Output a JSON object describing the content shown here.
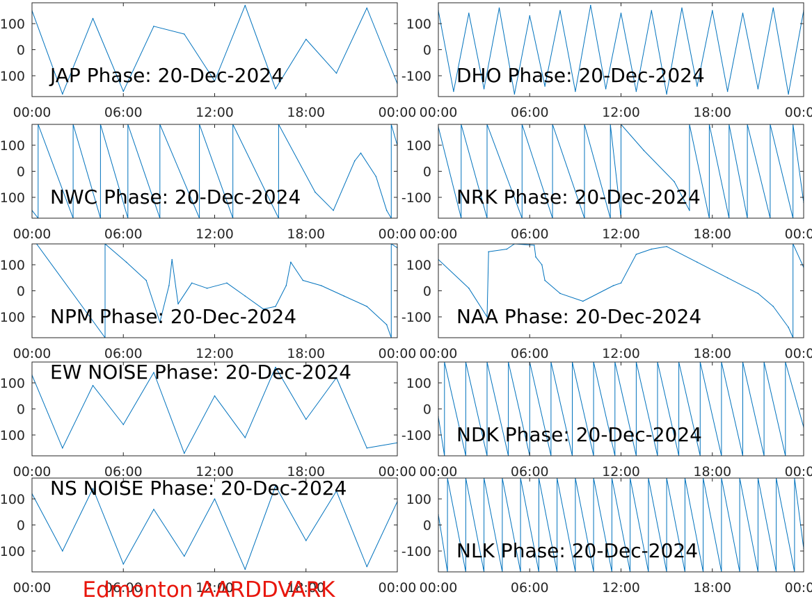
{
  "figure_title": "Edmonton AARDDVARK",
  "colors": {
    "series": "#0072BD",
    "footer": "#e8160c",
    "axes": "#262626"
  },
  "chart_data": [
    {
      "type": "line",
      "title": "JAP Phase: 20-Dec-2024",
      "xticks": [
        "00:00",
        "06:00",
        "12:00",
        "18:00",
        "00:00"
      ],
      "yticks": [
        "100",
        "0",
        "-100"
      ],
      "xlim": [
        0,
        24
      ],
      "ylim": [
        -180,
        180
      ],
      "series": [
        {
          "x": [
            0,
            2,
            4,
            6,
            8,
            10,
            12,
            14,
            16,
            18,
            20,
            22,
            24
          ],
          "y": [
            150,
            -170,
            120,
            -160,
            90,
            60,
            -120,
            170,
            -150,
            40,
            -90,
            160,
            -130
          ]
        }
      ]
    },
    {
      "type": "line",
      "title": "DHO Phase: 20-Dec-2024",
      "xticks": [
        "00:00",
        "06:00",
        "12:00",
        "18:00",
        "00:00"
      ],
      "yticks": [
        "100",
        "0",
        "-100"
      ],
      "xlim": [
        0,
        24
      ],
      "ylim": [
        -180,
        180
      ],
      "series": [
        {
          "x": [
            0,
            1,
            2,
            3,
            4,
            5,
            6,
            7,
            8,
            9,
            10,
            11,
            12,
            13,
            14,
            15,
            16,
            17,
            18,
            19,
            20,
            21,
            22,
            23,
            24
          ],
          "y": [
            150,
            -160,
            140,
            -150,
            160,
            -170,
            130,
            -140,
            150,
            -160,
            170,
            -150,
            140,
            -160,
            150,
            -170,
            160,
            -140,
            150,
            -160,
            140,
            -150,
            160,
            -170,
            150
          ]
        }
      ]
    },
    {
      "type": "line",
      "title": "NWC Phase: 20-Dec-2024",
      "xticks": [
        "00:00",
        "06:00",
        "12:00",
        "18:00",
        "00:00"
      ],
      "yticks": [
        "100",
        "0",
        "-100"
      ],
      "xlim": [
        0,
        24
      ],
      "ylim": [
        -180,
        180
      ],
      "series": [
        {
          "x": [
            0,
            0.4,
            0.4,
            2.7,
            2.7,
            4.5,
            4.5,
            6.3,
            6.3,
            8.4,
            8.4,
            11.0,
            11.0,
            13.2,
            13.2,
            16.2,
            16.2,
            18.6,
            19.8,
            21.2,
            21.6,
            22.6,
            23.3,
            23.6,
            23.6,
            24
          ],
          "y": [
            -150,
            -180,
            180,
            -180,
            180,
            -180,
            180,
            -180,
            180,
            -180,
            180,
            -180,
            180,
            -180,
            180,
            -180,
            180,
            -80,
            -150,
            40,
            70,
            -20,
            -150,
            -180,
            180,
            100
          ]
        }
      ]
    },
    {
      "type": "line",
      "title": "NRK Phase: 20-Dec-2024",
      "xticks": [
        "00:00",
        "06:00",
        "12:00",
        "18:00",
        "00:00"
      ],
      "yticks": [
        "100",
        "0",
        "-100"
      ],
      "xlim": [
        0,
        24
      ],
      "ylim": [
        -180,
        180
      ],
      "series": [
        {
          "x": [
            0,
            1.5,
            1.5,
            3.2,
            3.2,
            5.5,
            5.5,
            7.5,
            7.5,
            9.6,
            9.6,
            11.3,
            11.3,
            12.0,
            12.0,
            13.5,
            15.5,
            16.5,
            16.5,
            17.8,
            17.8,
            19.1,
            19.1,
            20.3,
            20.3,
            21.8,
            21.8,
            23.3,
            23.3,
            24
          ],
          "y": [
            170,
            -180,
            180,
            -180,
            180,
            -180,
            180,
            -180,
            180,
            -180,
            180,
            -180,
            180,
            -180,
            180,
            80,
            -40,
            -150,
            180,
            -180,
            180,
            -180,
            180,
            -180,
            180,
            -180,
            180,
            -180,
            180,
            -120
          ]
        }
      ]
    },
    {
      "type": "line",
      "title": "NPM Phase: 20-Dec-2024",
      "xticks": [
        "00:00",
        "06:00",
        "12:00",
        "18:00",
        "00:00"
      ],
      "yticks": [
        "100",
        "0",
        "-100"
      ],
      "xlim": [
        0,
        24
      ],
      "ylim": [
        -180,
        180
      ],
      "series": [
        {
          "x": [
            0.3,
            4.8,
            4.8,
            6.2,
            7.5,
            8.4,
            9.0,
            9.2,
            9.6,
            10.5,
            11.5,
            12.8,
            14.0,
            15.2,
            16.0,
            16.7,
            17.0,
            17.8,
            19.0,
            20.5,
            22.0,
            23.3,
            23.6,
            23.6,
            24
          ],
          "y": [
            180,
            -180,
            180,
            110,
            40,
            -120,
            20,
            120,
            -50,
            30,
            10,
            30,
            -20,
            -70,
            -60,
            20,
            110,
            40,
            20,
            -20,
            -60,
            -130,
            -180,
            180,
            165
          ]
        }
      ]
    },
    {
      "type": "line",
      "title": "NAA Phase: 20-Dec-2024",
      "xticks": [
        "00:00",
        "06:00",
        "12:00",
        "18:00",
        "00:00"
      ],
      "yticks": [
        "100",
        "0",
        "-100"
      ],
      "xlim": [
        0,
        24
      ],
      "ylim": [
        -180,
        180
      ],
      "series": [
        {
          "x": [
            0,
            2.0,
            3.2,
            3.3,
            4.5,
            5.0,
            6.3,
            6.4,
            6.8,
            7.0,
            8.0,
            9.5,
            11.5,
            12.0,
            13.0,
            14.0,
            15.0,
            17.0,
            19.0,
            21.0,
            22.0,
            23.0,
            23.3,
            23.3,
            24
          ],
          "y": [
            120,
            10,
            -100,
            150,
            160,
            180,
            175,
            130,
            100,
            40,
            -10,
            -40,
            20,
            30,
            140,
            160,
            170,
            110,
            50,
            -10,
            -60,
            -140,
            -180,
            180,
            90
          ]
        }
      ]
    },
    {
      "type": "line",
      "title": "EW NOISE Phase: 20-Dec-2024",
      "xticks": [
        "00:00",
        "06:00",
        "12:00",
        "18:00",
        "00:00"
      ],
      "yticks": [
        "100",
        "0",
        "-100"
      ],
      "xlim": [
        0,
        24
      ],
      "ylim": [
        -180,
        180
      ],
      "series": [
        {
          "x": [
            0,
            2,
            4,
            6,
            8,
            10,
            12,
            14,
            16,
            18,
            20,
            22,
            24
          ],
          "y": [
            130,
            -150,
            90,
            -60,
            140,
            -170,
            50,
            -110,
            160,
            -40,
            120,
            -150,
            -130
          ]
        }
      ]
    },
    {
      "type": "line",
      "title": "NDK Phase: 20-Dec-2024",
      "xticks": [
        "00:00",
        "06:00",
        "12:00",
        "18:00",
        "00:00"
      ],
      "yticks": [
        "100",
        "0",
        "-100"
      ],
      "xlim": [
        0,
        24
      ],
      "ylim": [
        -180,
        180
      ],
      "series": [
        {
          "x": [
            0,
            0.4,
            0.4,
            1.8,
            1.8,
            3.2,
            3.2,
            4.6,
            4.6,
            6.0,
            6.0,
            7.4,
            7.4,
            8.8,
            8.8,
            10.2,
            10.2,
            11.6,
            11.6,
            13.0,
            13.0,
            14.4,
            14.4,
            15.8,
            15.8,
            17.2,
            17.2,
            18.6,
            18.6,
            20.0,
            20.0,
            21.4,
            21.4,
            22.8,
            22.8,
            24
          ],
          "y": [
            -30,
            -180,
            180,
            -180,
            180,
            -180,
            180,
            -180,
            180,
            -180,
            180,
            -180,
            180,
            -180,
            180,
            -180,
            180,
            -180,
            180,
            -180,
            180,
            -180,
            180,
            -180,
            180,
            -180,
            180,
            -180,
            180,
            -180,
            180,
            -180,
            180,
            -180,
            180,
            -70
          ]
        }
      ]
    },
    {
      "type": "line",
      "title": "NS NOISE Phase: 20-Dec-2024",
      "xticks": [
        "00:00",
        "06:00",
        "12:00",
        "18:00",
        "00:00"
      ],
      "yticks": [
        "100",
        "0",
        "-100"
      ],
      "xlim": [
        0,
        24
      ],
      "ylim": [
        -180,
        180
      ],
      "series": [
        {
          "x": [
            0,
            2,
            4,
            6,
            8,
            10,
            12,
            14,
            16,
            18,
            20,
            22,
            24
          ],
          "y": [
            120,
            -100,
            140,
            -150,
            60,
            -120,
            100,
            -170,
            150,
            -60,
            130,
            -160,
            90
          ]
        }
      ]
    },
    {
      "type": "line",
      "title": "NLK Phase: 20-Dec-2024",
      "xticks": [
        "00:00",
        "06:00",
        "12:00",
        "18:00",
        "00:00"
      ],
      "yticks": [
        "100",
        "0",
        "-100"
      ],
      "xlim": [
        0,
        24
      ],
      "ylim": [
        -180,
        180
      ],
      "series": [
        {
          "x": [
            0,
            0.6,
            0.6,
            1.8,
            1.8,
            3.0,
            3.0,
            4.2,
            4.2,
            5.4,
            5.4,
            6.6,
            6.6,
            7.8,
            7.8,
            9.0,
            9.0,
            10.2,
            10.2,
            11.4,
            11.4,
            12.6,
            12.6,
            13.8,
            13.8,
            15.0,
            15.0,
            16.2,
            16.2,
            17.4,
            17.4,
            18.6,
            18.6,
            19.8,
            19.8,
            21.0,
            21.0,
            22.2,
            22.2,
            23.4,
            23.4,
            24
          ],
          "y": [
            40,
            -180,
            180,
            -180,
            180,
            -180,
            180,
            -180,
            180,
            -180,
            180,
            -180,
            180,
            -180,
            180,
            -180,
            180,
            -180,
            180,
            -180,
            180,
            -180,
            180,
            -180,
            180,
            -180,
            180,
            -180,
            180,
            -180,
            180,
            -180,
            180,
            -180,
            180,
            -180,
            180,
            -180,
            180,
            -180,
            180,
            -90
          ]
        }
      ]
    }
  ]
}
